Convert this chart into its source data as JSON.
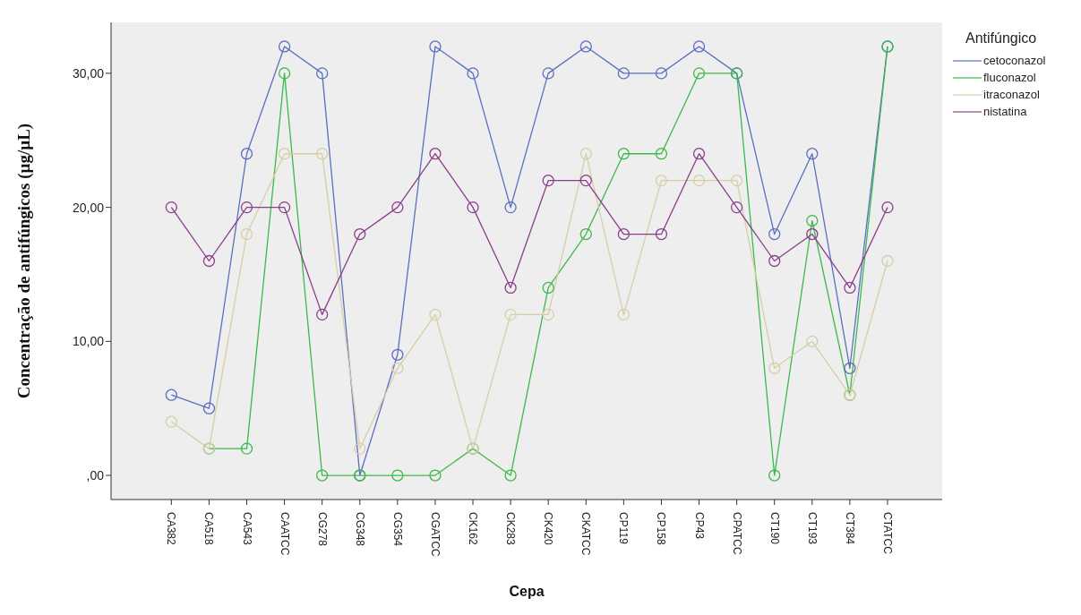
{
  "chart_data": {
    "type": "line",
    "xlabel": "Cepa",
    "ylabel": "Concentração de antifúngicos (µg/µL)",
    "legend_title": "Antifúngico",
    "legend": "top right",
    "marker": "circle",
    "line_style": "solid",
    "grid": false,
    "categories": [
      "CA382",
      "CA518",
      "CA543",
      "CAATCC",
      "CG278",
      "CG348",
      "CG354",
      "CGATCC",
      "CK162",
      "CK283",
      "CK420",
      "CKATCC",
      "CP119",
      "CP158",
      "CP43",
      "CPATCC",
      "CT190",
      "CT193",
      "CT384",
      "CTATCC"
    ],
    "ylim": [
      -1.8,
      33.8
    ],
    "yticks": [
      {
        "value": 0,
        "label": ",00"
      },
      {
        "value": 10,
        "label": "10,00"
      },
      {
        "value": 20,
        "label": "20,00"
      },
      {
        "value": 30,
        "label": "30,00"
      }
    ],
    "series": [
      {
        "name": "cetoconazol",
        "color": "#5a6fc0",
        "values": [
          6,
          5,
          24,
          32,
          30,
          0,
          9,
          32,
          30,
          20,
          30,
          32,
          30,
          30,
          32,
          30,
          18,
          24,
          8,
          32
        ]
      },
      {
        "name": "fluconazol",
        "color": "#3cb94a",
        "values": [
          null,
          2,
          2,
          30,
          0,
          0,
          0,
          0,
          2,
          0,
          14,
          18,
          24,
          24,
          30,
          30,
          0,
          19,
          6,
          32
        ]
      },
      {
        "name": "itraconazol",
        "color": "#d6cfa6",
        "values": [
          4,
          2,
          18,
          24,
          24,
          2,
          8,
          12,
          2,
          12,
          12,
          24,
          12,
          22,
          22,
          22,
          8,
          10,
          6,
          16
        ]
      },
      {
        "name": "nistatina",
        "color": "#8a3e8a",
        "values": [
          20,
          16,
          20,
          20,
          12,
          18,
          20,
          24,
          20,
          14,
          22,
          22,
          18,
          18,
          24,
          20,
          16,
          18,
          14,
          20
        ]
      }
    ]
  }
}
